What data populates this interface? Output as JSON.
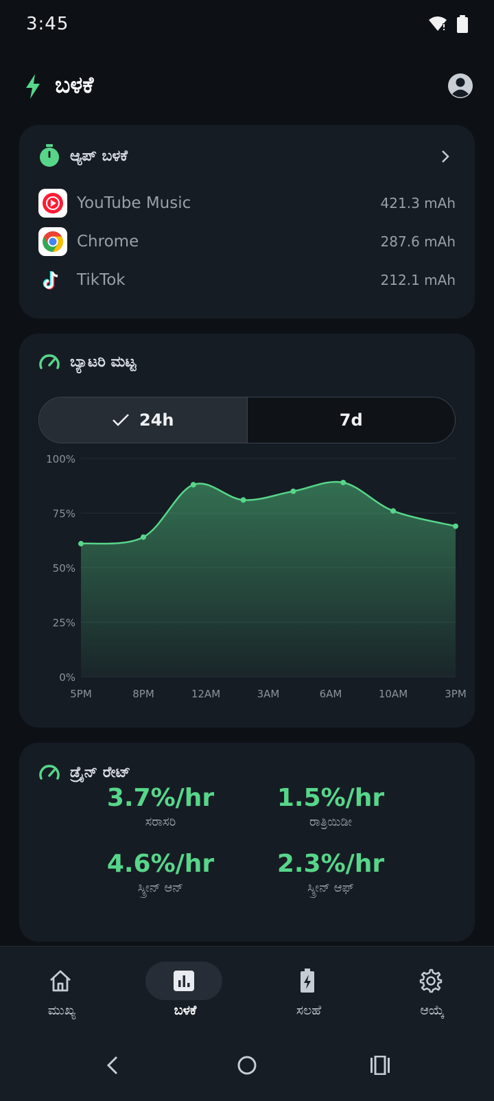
{
  "status_bar": {
    "time": "3:45"
  },
  "header": {
    "title": "ಬಳಕೆ"
  },
  "app_usage": {
    "title": "ಆ್ಯಪ್ ಬಳಕೆ",
    "apps": [
      {
        "name": "YouTube Music",
        "value": "421.3 mAh",
        "icon": "youtube-music-icon"
      },
      {
        "name": "Chrome",
        "value": "287.6 mAh",
        "icon": "chrome-icon"
      },
      {
        "name": "TikTok",
        "value": "212.1 mAh",
        "icon": "tiktok-icon"
      }
    ]
  },
  "battery_level": {
    "title": "ಬ್ಯಾಟರಿ ಮಟ್ಟ",
    "toggle": {
      "active_label": "24h",
      "inactive_label": "7d"
    }
  },
  "chart_data": {
    "type": "area",
    "categories": [
      "5PM",
      "8PM",
      "12AM",
      "3AM",
      "6AM",
      "10AM",
      "3PM"
    ],
    "series": [
      {
        "x": [
          0,
          1,
          1.8,
          2.6,
          3.4,
          4.2,
          5.0,
          6.0
        ],
        "values": [
          61,
          64,
          88,
          81,
          85,
          89,
          76,
          69
        ]
      }
    ],
    "y_ticks": [
      "0%",
      "25%",
      "50%",
      "75%",
      "100%"
    ],
    "ylim": [
      0,
      100
    ],
    "grid": true,
    "accent": "#57d68a"
  },
  "drain_rate": {
    "title": "ಡ್ರೈನ್ ರೇಟ್",
    "stats": [
      {
        "value": "3.7%/hr",
        "label": "ಸರಾಸರಿ"
      },
      {
        "value": "1.5%/hr",
        "label": "ರಾತ್ರಿಯಿಡೀ"
      },
      {
        "value": "4.6%/hr",
        "label": "ಸ್ಕ್ರೀನ್ ಆನ್"
      },
      {
        "value": "2.3%/hr",
        "label": "ಸ್ಕ್ರೀನ್ ಆಫ್"
      }
    ]
  },
  "bottom_nav": {
    "items": [
      {
        "label": "ಮುಖ್ಯ",
        "icon": "home-icon"
      },
      {
        "label": "ಬಳಕೆ",
        "icon": "bar-chart-icon"
      },
      {
        "label": "ಸಲಹೆ",
        "icon": "battery-charging-icon"
      },
      {
        "label": "ಆಯ್ಕೆ",
        "icon": "gear-icon"
      }
    ]
  },
  "colors": {
    "accent": "#57d68a",
    "card": "#161c24",
    "background": "#0d1116"
  }
}
